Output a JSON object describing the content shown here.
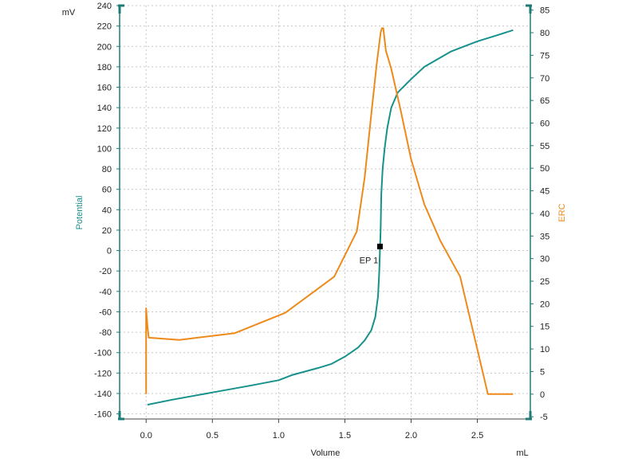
{
  "chart_data": {
    "type": "line",
    "title": "",
    "xlabel": "Volume",
    "x_unit": "mL",
    "ylabel_left": "Potential",
    "y_unit_left": "mV",
    "ylabel_right": "ERC",
    "xlim": [
      -0.2,
      2.9
    ],
    "ylim_left": [
      -165,
      240
    ],
    "ylim_right": [
      -5.5,
      86
    ],
    "x_ticks": [
      "0.0",
      "0.5",
      "1.0",
      "1.5",
      "2.0",
      "2.5"
    ],
    "y_ticks_left": [
      "240",
      "220",
      "200",
      "180",
      "160",
      "140",
      "120",
      "100",
      "80",
      "60",
      "40",
      "20",
      "0",
      "-20",
      "-40",
      "-60",
      "-80",
      "-100",
      "-120",
      "-140",
      "-160"
    ],
    "y_ticks_right": [
      "85",
      "80",
      "75",
      "70",
      "65",
      "60",
      "55",
      "50",
      "45",
      "40",
      "35",
      "30",
      "25",
      "20",
      "15",
      "10",
      "5",
      "0",
      "-5"
    ],
    "grid": true,
    "colors": {
      "potential": "#17918b",
      "erc": "#ee8a1a",
      "axis": "#1e7b77",
      "grid": "#c8c8c8",
      "marker": "#000000"
    },
    "series": [
      {
        "name": "Potential",
        "axis": "left",
        "points": [
          [
            0.01,
            -151
          ],
          [
            0.2,
            -146
          ],
          [
            0.5,
            -139
          ],
          [
            0.8,
            -132
          ],
          [
            1.0,
            -127
          ],
          [
            1.1,
            -122
          ],
          [
            1.3,
            -115
          ],
          [
            1.4,
            -111
          ],
          [
            1.5,
            -104
          ],
          [
            1.6,
            -95
          ],
          [
            1.65,
            -88
          ],
          [
            1.7,
            -78
          ],
          [
            1.73,
            -65
          ],
          [
            1.75,
            -45
          ],
          [
            1.76,
            -20
          ],
          [
            1.765,
            0
          ],
          [
            1.77,
            20
          ],
          [
            1.775,
            55
          ],
          [
            1.785,
            80
          ],
          [
            1.8,
            100
          ],
          [
            1.82,
            120
          ],
          [
            1.85,
            140
          ],
          [
            1.9,
            155
          ],
          [
            2.0,
            168
          ],
          [
            2.1,
            180
          ],
          [
            2.3,
            195
          ],
          [
            2.5,
            205
          ],
          [
            2.65,
            211
          ],
          [
            2.77,
            216
          ]
        ]
      },
      {
        "name": "ERC",
        "axis": "right",
        "points": [
          [
            0.0,
            0
          ],
          [
            0.0,
            19
          ],
          [
            0.01,
            15
          ],
          [
            0.02,
            12.5
          ],
          [
            0.25,
            12
          ],
          [
            0.67,
            13.5
          ],
          [
            1.05,
            18
          ],
          [
            1.42,
            26
          ],
          [
            1.59,
            36
          ],
          [
            1.65,
            48
          ],
          [
            1.7,
            62
          ],
          [
            1.74,
            73
          ],
          [
            1.77,
            80
          ],
          [
            1.78,
            81
          ],
          [
            1.79,
            81
          ],
          [
            1.81,
            76
          ],
          [
            1.85,
            72
          ],
          [
            1.92,
            63
          ],
          [
            2.0,
            52
          ],
          [
            2.1,
            42
          ],
          [
            2.22,
            34
          ],
          [
            2.37,
            26
          ],
          [
            2.58,
            0
          ],
          [
            2.77,
            0
          ]
        ]
      }
    ],
    "annotations": [
      {
        "label": "EP 1",
        "x": 1.765,
        "y": 4,
        "axis": "left"
      }
    ]
  }
}
